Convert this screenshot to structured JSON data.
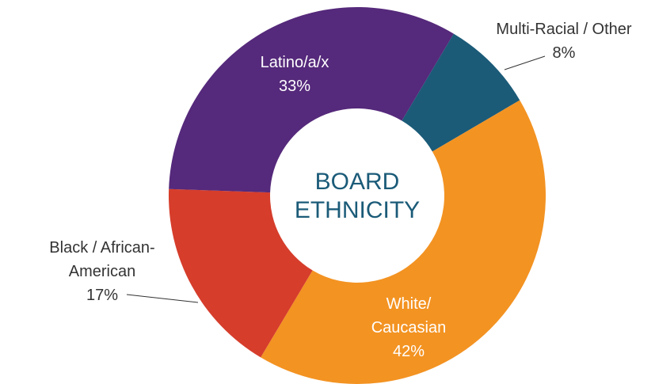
{
  "chart_data": {
    "type": "pie",
    "center_label": "BOARD ETHNICITY",
    "categories": [
      "Multi-Racial / Other",
      "White/ Caucasian",
      "Black / African-American",
      "Latino/a/x"
    ],
    "values": [
      8,
      42,
      17,
      33
    ],
    "value_labels": [
      "8%",
      "42%",
      "17%",
      "33%"
    ],
    "colors": [
      "#1b5b78",
      "#f39322",
      "#d63d2b",
      "#55297b"
    ]
  }
}
